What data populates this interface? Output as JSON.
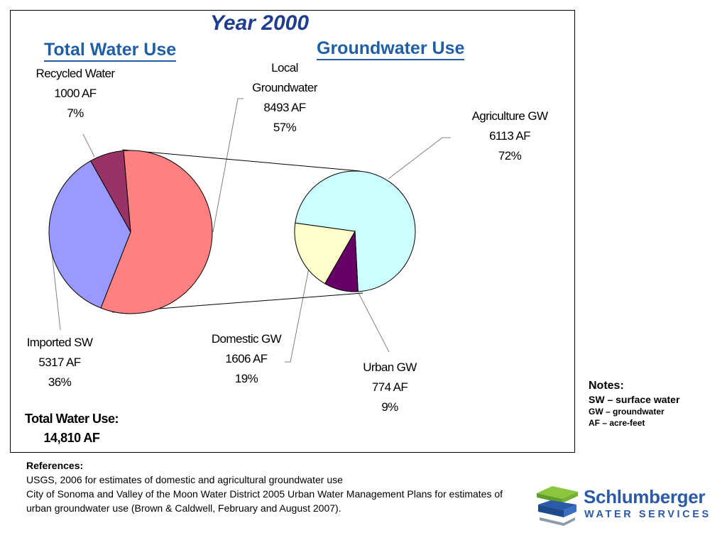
{
  "slide": {
    "title": "Year 2000",
    "left_heading": "Total Water Use",
    "right_heading": "Groundwater Use"
  },
  "chart_data": [
    {
      "type": "pie",
      "title": "Total Water Use",
      "unit": "AF",
      "slices": [
        {
          "name": "Local Groundwater",
          "value": 8493,
          "percent": "57%",
          "color": "#ff8080"
        },
        {
          "name": "Imported SW",
          "value": 5317,
          "percent": "36%",
          "color": "#9999ff"
        },
        {
          "name": "Recycled Water",
          "value": 1000,
          "percent": "7%",
          "color": "#993366"
        }
      ],
      "total_label": "Total Water Use:",
      "total_value": "14,810 AF"
    },
    {
      "type": "pie",
      "title": "Groundwater Use",
      "unit": "AF",
      "slices": [
        {
          "name": "Agriculture GW",
          "value": 6113,
          "percent": "72%",
          "color": "#ccffff"
        },
        {
          "name": "Urban GW",
          "value": 774,
          "percent": "9%",
          "color": "#660066"
        },
        {
          "name": "Domestic GW",
          "value": 1606,
          "percent": "19%",
          "color": "#ffffcc"
        }
      ]
    }
  ],
  "labels": {
    "local_gw": {
      "line1": "Local",
      "line2": "Groundwater",
      "line3": "8493 AF",
      "line4": "57%"
    },
    "recycled": {
      "line1": "Recycled Water",
      "line2": "1000 AF",
      "line3": "7%"
    },
    "imported": {
      "line1": "Imported SW",
      "line2": "5317 AF",
      "line3": "36%"
    },
    "agriculture": {
      "line1": "Agriculture GW",
      "line2": "6113 AF",
      "line3": "72%"
    },
    "domestic": {
      "line1": "Domestic GW",
      "line2": "1606 AF",
      "line3": "19%"
    },
    "urban": {
      "line1": "Urban GW",
      "line2": "774 AF",
      "line3": "9%"
    }
  },
  "notes": {
    "title": "Notes:",
    "lines": [
      "SW – surface water",
      "GW – groundwater",
      "AF – acre-feet"
    ]
  },
  "references": {
    "title": "References:",
    "line1": "USGS, 2006 for estimates of domestic and agricultural groundwater use",
    "line2": "City of Sonoma and Valley of the Moon Water District 2005 Urban Water Management Plans for estimates of urban groundwater use (Brown & Caldwell, February and August 2007)."
  },
  "logo": {
    "name": "Schlumberger",
    "subtitle": "WATER SERVICES",
    "colors": {
      "green": "#8cc63f",
      "blue": "#2a5aa8",
      "gray": "#8a9aa8"
    }
  }
}
